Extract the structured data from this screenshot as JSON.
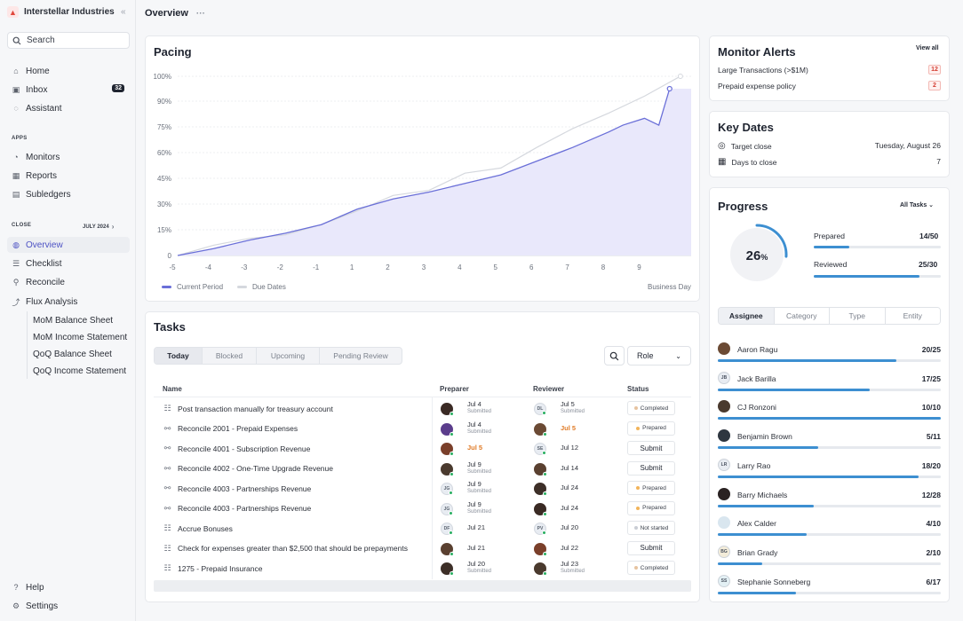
{
  "sidebar": {
    "brand": "Interstellar Industries",
    "search": "Search",
    "main_items": [
      {
        "label": "Home",
        "icon": "home-icon"
      },
      {
        "label": "Inbox",
        "icon": "inbox-icon",
        "count": "32"
      },
      {
        "label": "Assistant",
        "icon": "chat-icon"
      }
    ],
    "apps_label": "APPS",
    "apps": [
      {
        "label": "Monitors",
        "icon": "monitor-icon"
      },
      {
        "label": "Reports",
        "icon": "report-icon"
      },
      {
        "label": "Subledgers",
        "icon": "ledger-icon"
      }
    ],
    "close_label": "CLOSE",
    "period_label": "JULY 2024",
    "close_items": [
      {
        "label": "Overview",
        "icon": "overview-icon",
        "active": true
      },
      {
        "label": "Checklist",
        "icon": "checklist-icon"
      },
      {
        "label": "Reconcile",
        "icon": "reconcile-icon"
      },
      {
        "label": "Flux Analysis",
        "icon": "flux-icon"
      }
    ],
    "flux_items": [
      "MoM Balance Sheet",
      "MoM Income Statement",
      "QoQ Balance Sheet",
      "QoQ Income Statement"
    ],
    "bottom_items": [
      {
        "label": "Help",
        "icon": "help-icon"
      },
      {
        "label": "Settings",
        "icon": "settings-icon"
      }
    ]
  },
  "header": {
    "title": "Overview",
    "more": "···"
  },
  "pacing": {
    "title": "Pacing",
    "legend_current": "Current Period",
    "legend_due": "Due Dates",
    "x_axis_name": "Business Day"
  },
  "chart_data": {
    "type": "area",
    "xlabel": "Business Day",
    "ylabel": "",
    "x_ticks": [
      "-5",
      "-4",
      "-3",
      "-2",
      "-1",
      "1",
      "2",
      "3",
      "4",
      "5",
      "6",
      "7",
      "8",
      "9"
    ],
    "y_ticks": [
      "0",
      "15%",
      "30%",
      "45%",
      "60%",
      "75%",
      "90%",
      "100%"
    ],
    "series": [
      {
        "name": "Current Period",
        "color": "#6a6fd8",
        "points": [
          [
            -5,
            0
          ],
          [
            -4,
            4
          ],
          [
            -3,
            9
          ],
          [
            -2,
            13
          ],
          [
            -1,
            18
          ],
          [
            1,
            27
          ],
          [
            2,
            33
          ],
          [
            3,
            37
          ],
          [
            4,
            42
          ],
          [
            5,
            47
          ],
          [
            6,
            55
          ],
          [
            7,
            63
          ],
          [
            8,
            72
          ],
          [
            8.4,
            76
          ],
          [
            9,
            80
          ],
          [
            9.4,
            76
          ],
          [
            9.7,
            95
          ]
        ]
      },
      {
        "name": "Due Dates",
        "color": "#d5d8de",
        "points": [
          [
            -5,
            0
          ],
          [
            -4,
            6
          ],
          [
            -3,
            10
          ],
          [
            -2,
            12
          ],
          [
            -1,
            18
          ],
          [
            1,
            26
          ],
          [
            2,
            35
          ],
          [
            3,
            38
          ],
          [
            4,
            48
          ],
          [
            5,
            51
          ],
          [
            6,
            63
          ],
          [
            7,
            74
          ],
          [
            8,
            83
          ],
          [
            9,
            92
          ],
          [
            10,
            100
          ]
        ]
      }
    ]
  },
  "tasks": {
    "title": "Tasks",
    "tabs": [
      "Today",
      "Blocked",
      "Upcoming",
      "Pending Review"
    ],
    "role_label": "Role",
    "columns": {
      "name": "Name",
      "preparer": "Preparer",
      "reviewer": "Reviewer",
      "status": "Status"
    },
    "rows": [
      {
        "name": "Post transaction manually for treasury account",
        "icon": "checklist-icon",
        "prep_av": "photo",
        "prep_date": "Jul 4",
        "prep_sub": "Submitted",
        "rev_av": "DL",
        "rev_date": "Jul 5",
        "rev_sub": "Submitted",
        "status": "Completed",
        "status_color": "#e6c3a0"
      },
      {
        "name": "Reconcile 2001 - Prepaid Expenses",
        "icon": "bike-icon",
        "prep_av": "photo",
        "prep_date": "Jul 4",
        "prep_sub": "Submitted",
        "rev_av": "photo",
        "rev_date": "Jul 5",
        "rev_late": true,
        "status": "Prepared",
        "status_color": "#f2b45a"
      },
      {
        "name": "Reconcile 4001 - Subscription Revenue",
        "icon": "bike-icon",
        "prep_av": "photo",
        "prep_date": "Jul 5",
        "prep_late": true,
        "rev_av": "SE",
        "rev_date": "Jul 12",
        "status": "Submit"
      },
      {
        "name": "Reconcile 4002 - One-Time Upgrade Revenue",
        "icon": "bike-icon",
        "prep_av": "photo",
        "prep_date": "Jul 9",
        "prep_sub": "Submitted",
        "rev_av": "photo",
        "rev_date": "Jul 14",
        "status": "Submit"
      },
      {
        "name": "Reconcile 4003 - Partnerships Revenue",
        "icon": "bike-icon",
        "prep_av": "JG",
        "prep_date": "Jul 9",
        "prep_sub": "Submitted",
        "rev_av": "photo",
        "rev_date": "Jul 24",
        "status": "Prepared",
        "status_color": "#f2b45a"
      },
      {
        "name": "Reconcile 4003 - Partnerships Revenue",
        "icon": "bike-icon",
        "prep_av": "JG",
        "prep_date": "Jul 9",
        "prep_sub": "Submitted",
        "rev_av": "photo",
        "rev_date": "Jul 24",
        "status": "Prepared",
        "status_color": "#f2b45a"
      },
      {
        "name": "Accrue Bonuses",
        "icon": "checklist-icon",
        "prep_av": "DF",
        "prep_date": "Jul 21",
        "rev_av": "PV",
        "rev_date": "Jul 20",
        "status": "Not started",
        "status_color": "#c9cdd4"
      },
      {
        "name": "Check for expenses greater than $2,500 that should be prepayments",
        "icon": "checklist-icon",
        "prep_av": "photo",
        "prep_date": "Jul 21",
        "rev_av": "photo",
        "rev_date": "Jul 22",
        "status": "Submit"
      },
      {
        "name": "1275 - Prepaid Insurance",
        "icon": "checklist-icon",
        "prep_av": "photo",
        "prep_date": "Jul 20",
        "prep_sub": "Submitted",
        "rev_av": "photo",
        "rev_date": "Jul 23",
        "rev_sub": "Submitted",
        "status": "Completed",
        "status_color": "#e6c3a0"
      }
    ]
  },
  "alerts": {
    "title": "Monitor Alerts",
    "view_all": "View all",
    "items": [
      {
        "label": "Large Transactions (>$1M)",
        "count": "12"
      },
      {
        "label": "Prepaid expense policy",
        "count": "2"
      }
    ]
  },
  "key_dates": {
    "title": "Key Dates",
    "items": [
      {
        "label": "Target close",
        "value": "Tuesday, August 26",
        "icon": "target-icon"
      },
      {
        "label": "Days to close",
        "value": "7",
        "icon": "calendar-icon"
      }
    ]
  },
  "progress": {
    "title": "Progress",
    "filter": "All Tasks",
    "percent": "26",
    "percent_unit": "%",
    "percent_fraction": 0.26,
    "prepared_label": "Prepared",
    "prepared_value": "14/50",
    "prepared_fraction": 0.28,
    "reviewed_label": "Reviewed",
    "reviewed_value": "25/30",
    "reviewed_fraction": 0.83,
    "segments": [
      "Assignee",
      "Category",
      "Type",
      "Entity"
    ],
    "accent": "#3d8fd1",
    "people": [
      {
        "name": "Aaron Ragu",
        "value": "20/25",
        "fraction": 0.8,
        "avatar": "photo"
      },
      {
        "name": "Jack Barilla",
        "value": "17/25",
        "fraction": 0.68,
        "avatar": "JB"
      },
      {
        "name": "CJ Ronzoni",
        "value": "10/10",
        "fraction": 1.0,
        "avatar": "photo"
      },
      {
        "name": "Benjamin Brown",
        "value": "5/11",
        "fraction": 0.45,
        "avatar": "photo"
      },
      {
        "name": "Larry Rao",
        "value": "18/20",
        "fraction": 0.9,
        "avatar": "LR"
      },
      {
        "name": "Barry Michaels",
        "value": "12/28",
        "fraction": 0.43,
        "avatar": "photo"
      },
      {
        "name": "Alex Calder",
        "value": "4/10",
        "fraction": 0.4,
        "avatar": "photo"
      },
      {
        "name": "Brian Grady",
        "value": "2/10",
        "fraction": 0.2,
        "avatar": "BG"
      },
      {
        "name": "Stephanie Sonneberg",
        "value": "6/17",
        "fraction": 0.35,
        "avatar": "SS"
      }
    ]
  }
}
